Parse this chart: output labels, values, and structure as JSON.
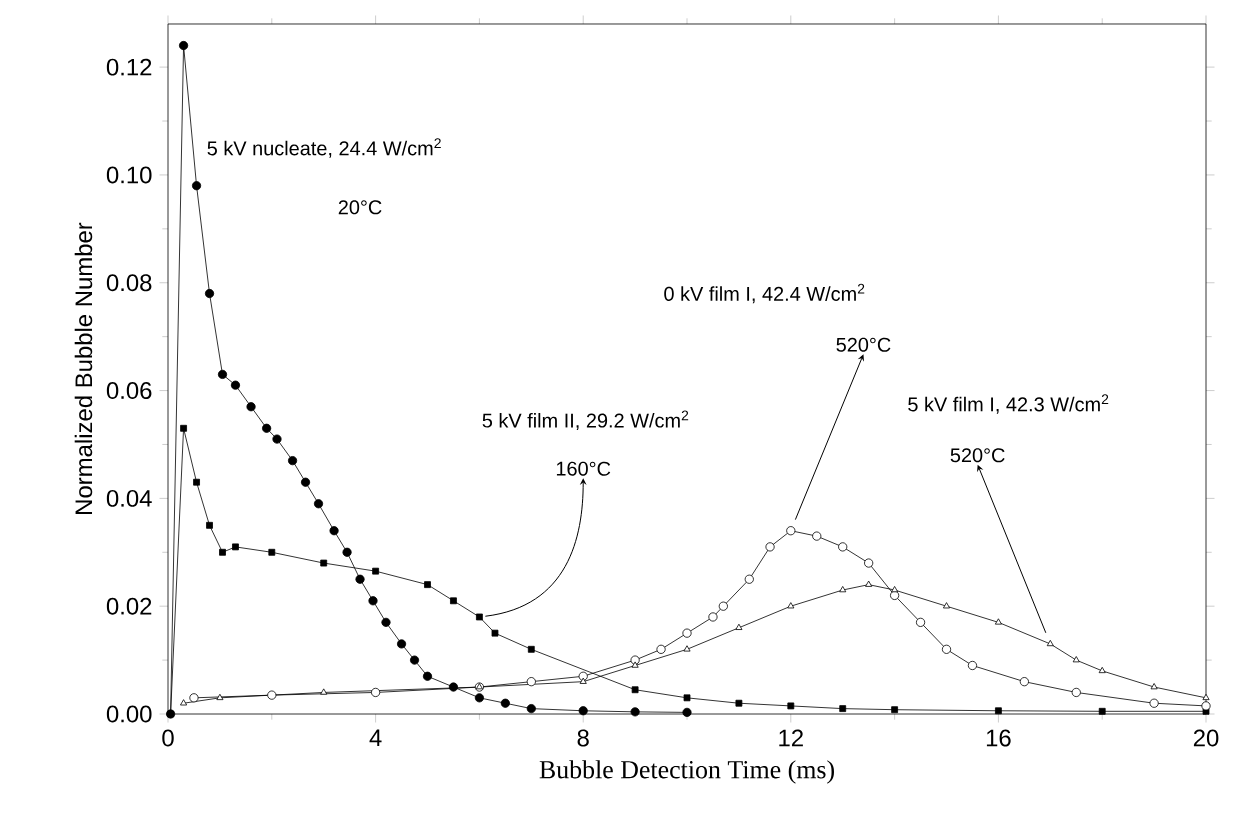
{
  "chart_data": {
    "type": "line",
    "xlabel": "Bubble Detection Time (ms)",
    "ylabel": "Normalized Bubble Number",
    "xlim": [
      0,
      20
    ],
    "xticks": [
      0,
      4,
      8,
      12,
      16,
      20
    ],
    "ylim": [
      0,
      0.128
    ],
    "yticks": [
      {
        "value": 0,
        "label": "0.00"
      },
      {
        "value": 0.02,
        "label": "0.02"
      },
      {
        "value": 0.04,
        "label": "0.04"
      },
      {
        "value": 0.06,
        "label": "0.06"
      },
      {
        "value": 0.08,
        "label": "0.08"
      },
      {
        "value": 0.1,
        "label": "0.10"
      },
      {
        "value": 0.12,
        "label": "0.12"
      }
    ],
    "grid": false,
    "series": [
      {
        "color": "#000000",
        "marker": "circle",
        "x": [
          0.05,
          0.3,
          0.55,
          0.8,
          1.05,
          1.3,
          1.6,
          1.9,
          2.1,
          2.4,
          2.65,
          2.9,
          3.2,
          3.45,
          3.7,
          3.95,
          4.2,
          4.5,
          4.75,
          5.0,
          5.5,
          6.0,
          6.5,
          7.0,
          8.0,
          9.0,
          10.0
        ],
        "values": [
          0.0,
          0.124,
          0.098,
          0.078,
          0.063,
          0.061,
          0.057,
          0.053,
          0.051,
          0.047,
          0.043,
          0.039,
          0.034,
          0.03,
          0.025,
          0.021,
          0.017,
          0.013,
          0.01,
          0.007,
          0.005,
          0.003,
          0.002,
          0.001,
          0.0006,
          0.0004,
          0.0003
        ]
      },
      {
        "color": "#000000",
        "marker": "square",
        "x": [
          0.05,
          0.3,
          0.55,
          0.8,
          1.05,
          1.3,
          2.0,
          3.0,
          4.0,
          5.0,
          5.5,
          6.0,
          6.3,
          7.0,
          8.0,
          9.0,
          10.0,
          11.0,
          12.0,
          13.0,
          14.0,
          16.0,
          18.0,
          20.0
        ],
        "values": [
          0.0,
          0.053,
          0.043,
          0.035,
          0.03,
          0.031,
          0.03,
          0.028,
          0.0265,
          0.024,
          0.021,
          0.018,
          0.015,
          0.012,
          null,
          0.0045,
          0.003,
          0.002,
          0.0015,
          0.001,
          0.0008,
          0.0006,
          0.0005,
          0.0005
        ]
      },
      {
        "color": "#000000",
        "marker": "circle",
        "x": [
          0.5,
          2.0,
          4.0,
          6.0,
          7.0,
          8.0,
          9.0,
          9.5,
          10.0,
          10.5,
          10.7,
          11.2,
          11.6,
          12.0,
          12.5,
          13.0,
          13.5,
          14.0,
          14.5,
          15.0,
          15.5,
          16.5,
          17.5,
          19.0,
          20.0
        ],
        "values": [
          0.003,
          0.0035,
          0.004,
          0.005,
          0.006,
          0.007,
          0.01,
          0.012,
          0.015,
          0.018,
          0.02,
          0.025,
          0.031,
          0.034,
          0.033,
          0.031,
          0.028,
          0.022,
          0.017,
          0.012,
          0.009,
          0.006,
          0.004,
          0.002,
          0.0015
        ]
      },
      {
        "color": "#000000",
        "marker": "triangle",
        "x": [
          0.3,
          1.0,
          3.0,
          6.0,
          8.0,
          9.0,
          10.0,
          11.0,
          12.0,
          13.0,
          13.5,
          14.0,
          15.0,
          16.0,
          17.0,
          17.5,
          18.0,
          19.0,
          20.0
        ],
        "values": [
          0.002,
          0.003,
          0.004,
          0.005,
          0.006,
          0.009,
          0.012,
          0.016,
          0.02,
          0.023,
          0.024,
          0.023,
          0.02,
          0.017,
          0.013,
          0.01,
          0.008,
          0.005,
          0.003
        ]
      }
    ],
    "annotations": [
      "5 kV nucleate, 24.4 W/cm$^{2}$",
      "20°C",
      "5 kV film II, 29.2 W/cm$^{2}$",
      {
        "text": "160°C",
        "x": 6.0,
        "y": 0.018
      },
      "0 kV film I, 42.4 W/cm$^{2}$",
      {
        "text": "520°C",
        "x": 12.0,
        "y": 0.034
      },
      "5 kV film I, 42.3 W/cm$^{2}$",
      {
        "text": "520°C",
        "x": 17.0,
        "y": 0.013
      }
    ]
  }
}
